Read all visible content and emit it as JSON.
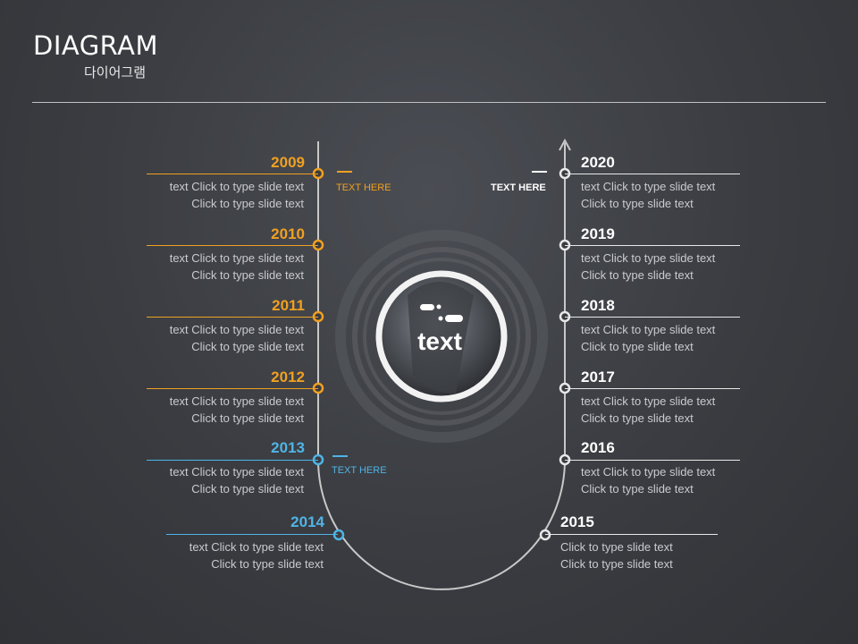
{
  "header": {
    "title": "DIAGRAM",
    "subtitle": "다이어그램"
  },
  "center": {
    "label": "text"
  },
  "colors": {
    "orange": "#f0a020",
    "blue": "#4fb4e6",
    "white": "#ffffff",
    "line": "#c8c8c8"
  },
  "annotations": [
    {
      "text": "TEXT HERE",
      "color": "orange"
    },
    {
      "text": "TEXT HERE",
      "color": "blue"
    },
    {
      "text": "TEXT HERE",
      "color": "white"
    }
  ],
  "left_items": [
    {
      "year": "2009",
      "line1": "text Click to type slide text",
      "line2": "Click to type slide text",
      "color": "orange"
    },
    {
      "year": "2010",
      "line1": "text Click to type slide text",
      "line2": "Click to type slide text",
      "color": "orange"
    },
    {
      "year": "2011",
      "line1": "text Click to type slide text",
      "line2": "Click to type slide text",
      "color": "orange"
    },
    {
      "year": "2012",
      "line1": "text Click to type slide text",
      "line2": "Click to type slide text",
      "color": "orange"
    },
    {
      "year": "2013",
      "line1": "text Click to type slide text",
      "line2": "Click to type slide text",
      "color": "blue"
    },
    {
      "year": "2014",
      "line1": "text Click to type slide text",
      "line2": "Click to type slide text",
      "color": "blue"
    }
  ],
  "right_items": [
    {
      "year": "2020",
      "line1": "text Click to type slide text",
      "line2": "Click to type slide text"
    },
    {
      "year": "2019",
      "line1": "text Click to type slide text",
      "line2": "Click to type slide text"
    },
    {
      "year": "2018",
      "line1": "text Click to type slide text",
      "line2": "Click to type slide text"
    },
    {
      "year": "2017",
      "line1": "text Click to type slide text",
      "line2": "Click to type slide text"
    },
    {
      "year": "2016",
      "line1": "text Click to type slide text",
      "line2": "Click to type slide text"
    },
    {
      "year": "2015",
      "line1": "Click to type slide text",
      "line2": "Click to type slide text"
    }
  ]
}
